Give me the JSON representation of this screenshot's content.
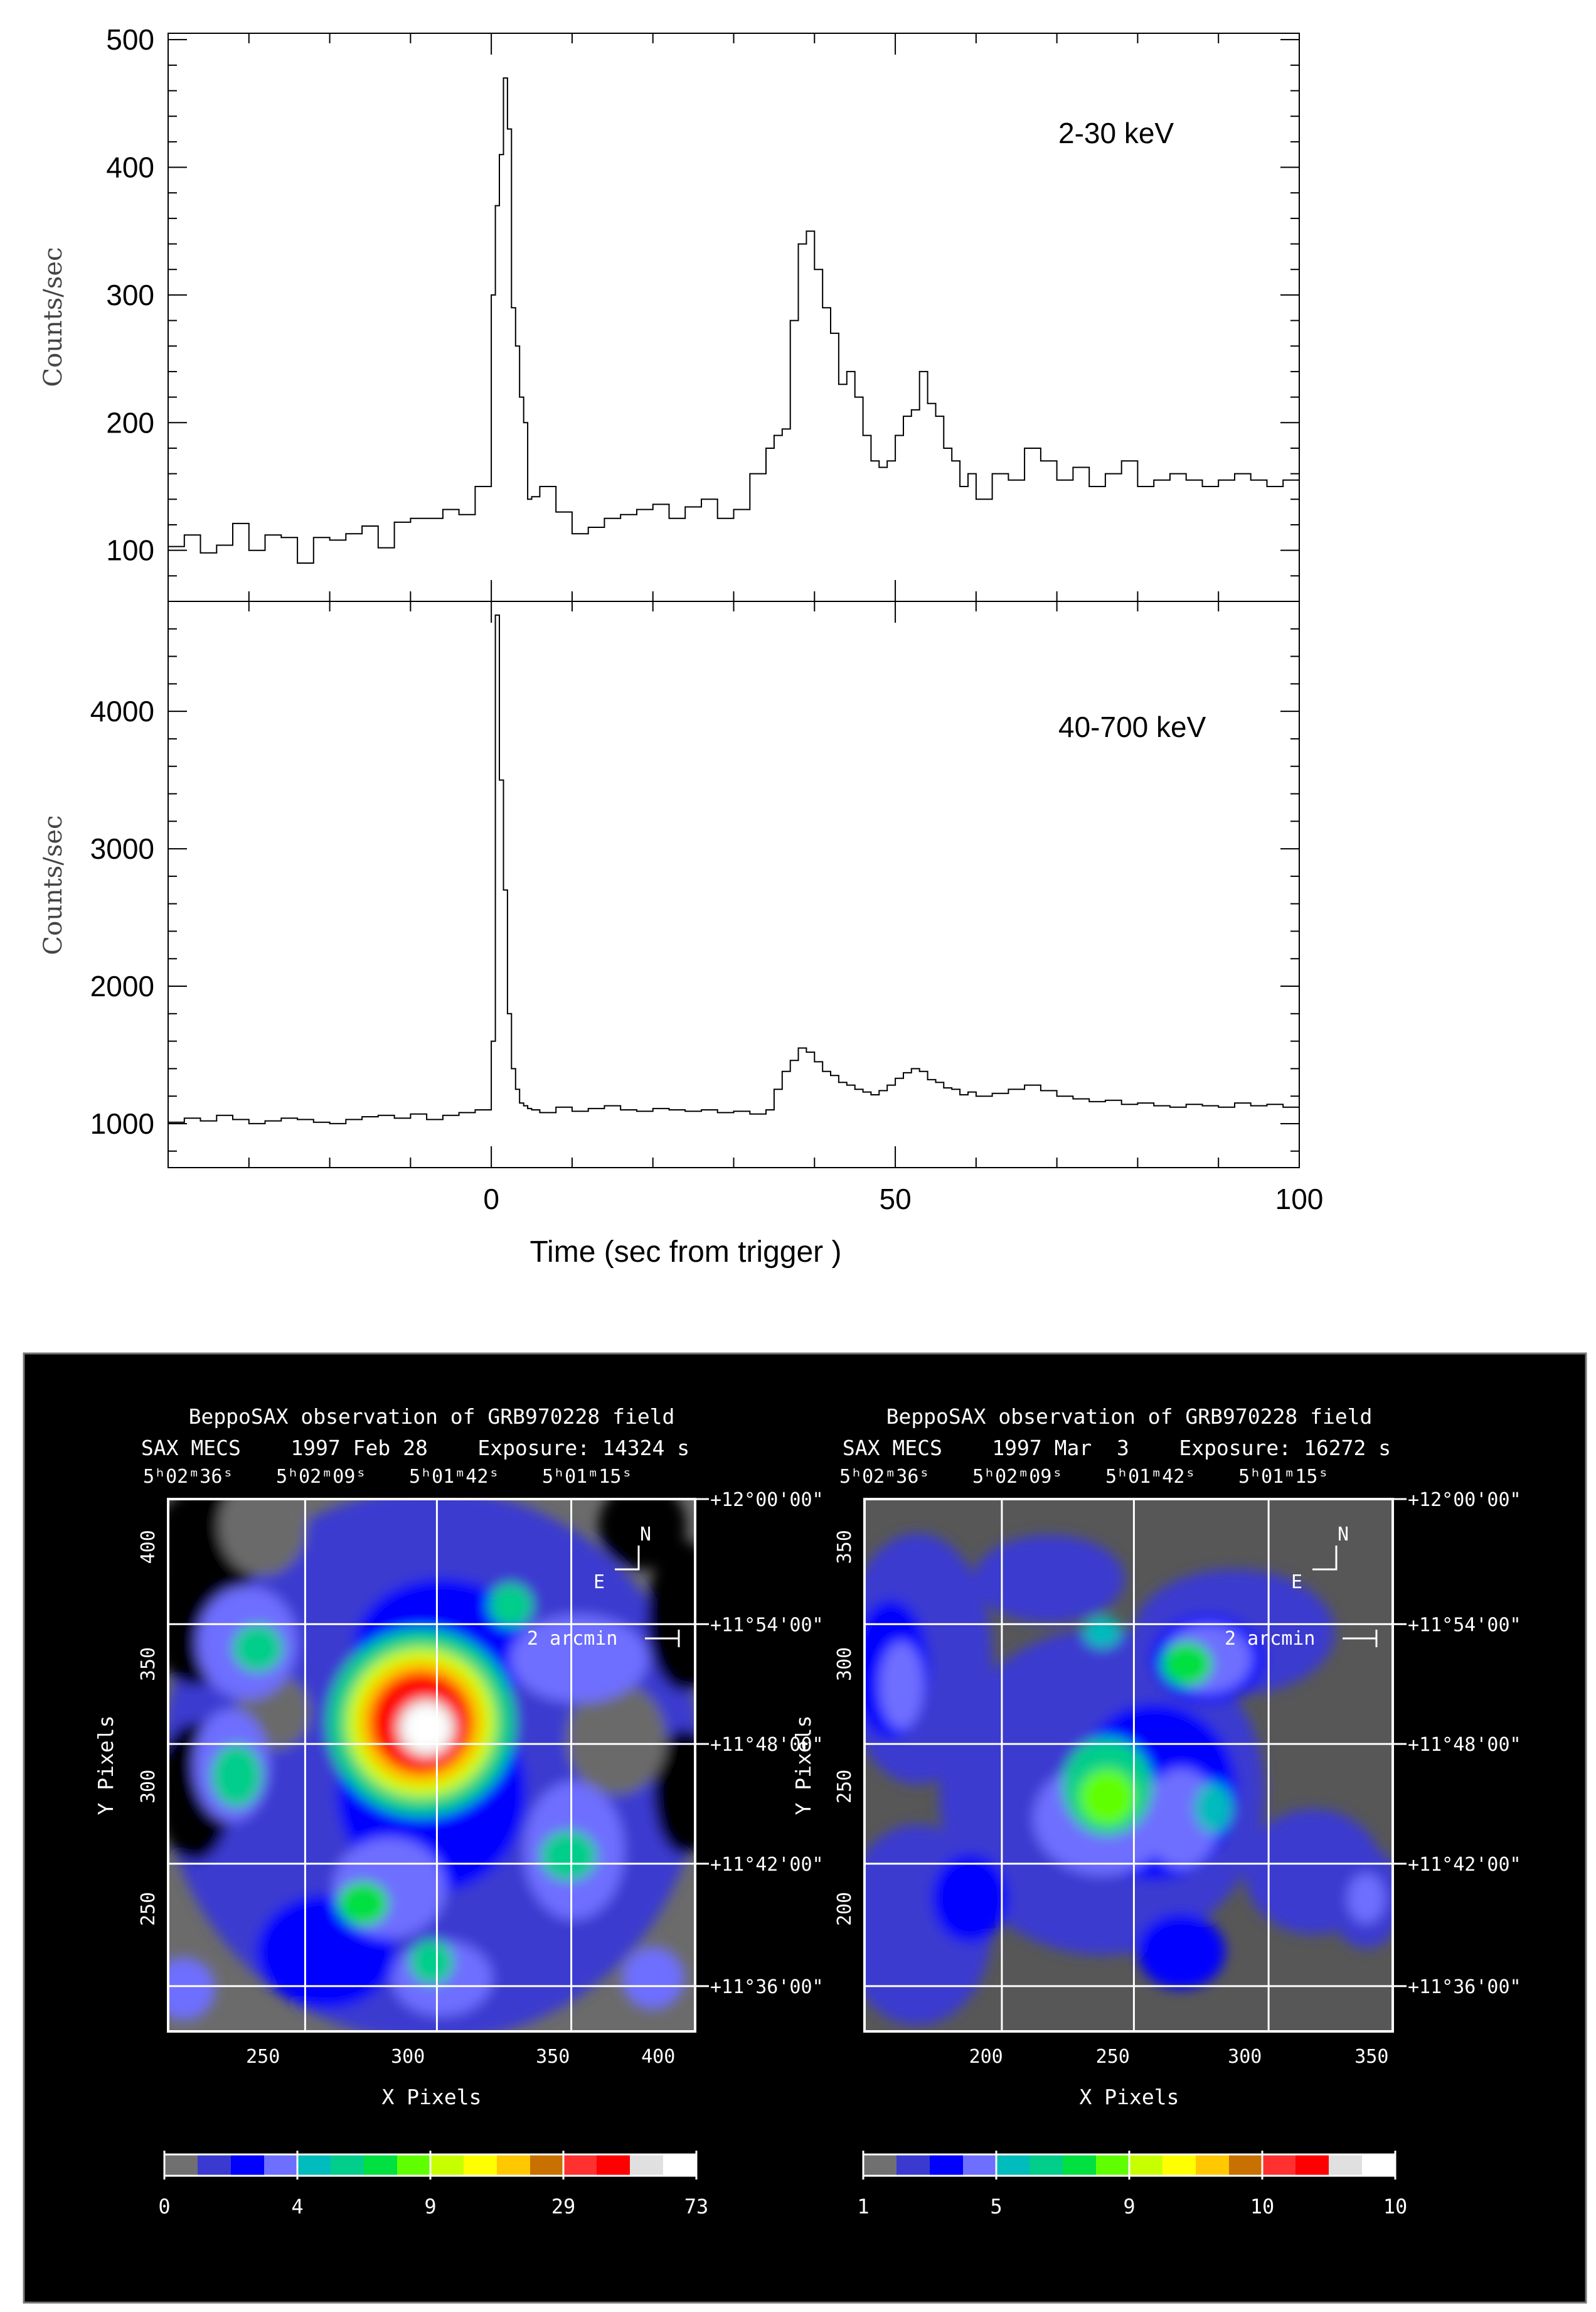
{
  "colors": {
    "line": "#000000",
    "panel_bg": "#000000",
    "grid": "#ffffff",
    "colorbar": [
      "#707070",
      "#3a3ad0",
      "#0000ff",
      "#6e6eff",
      "#00bcbc",
      "#00ce8a",
      "#00e040",
      "#60ff00",
      "#c8ff00",
      "#ffff00",
      "#ffc800",
      "#c87000",
      "#ff3030",
      "#ff0000",
      "#e0e0e0",
      "#ffffff"
    ]
  },
  "chart_data": [
    {
      "type": "line",
      "panel": "top",
      "title": "",
      "annotation": "2-30 keV",
      "xlabel": "",
      "ylabel": "Counts/sec",
      "xlim": [
        -40,
        100
      ],
      "ylim": [
        60,
        505
      ],
      "yticks": [
        "100",
        "200",
        "300",
        "400",
        "500"
      ],
      "x": [
        -40,
        -38,
        -36,
        -34,
        -32,
        -30,
        -28,
        -26,
        -24,
        -22,
        -20,
        -18,
        -16,
        -14,
        -12,
        -10,
        -8,
        -6,
        -4,
        -2,
        0,
        0.5,
        1,
        1.5,
        2,
        2.5,
        3,
        3.5,
        4,
        4.5,
        5,
        6,
        8,
        10,
        12,
        14,
        16,
        18,
        20,
        22,
        24,
        26,
        28,
        30,
        32,
        34,
        35,
        36,
        37,
        38,
        39,
        40,
        41,
        42,
        43,
        44,
        45,
        46,
        47,
        48,
        49,
        50,
        51,
        52,
        53,
        54,
        55,
        56,
        57,
        58,
        59,
        60,
        62,
        64,
        66,
        68,
        70,
        72,
        74,
        76,
        78,
        80,
        82,
        84,
        86,
        88,
        90,
        92,
        94,
        96,
        98,
        100
      ],
      "values": [
        103,
        112,
        98,
        104,
        121,
        100,
        112,
        110,
        90,
        110,
        108,
        113,
        119,
        102,
        122,
        125,
        125,
        132,
        128,
        150,
        300,
        370,
        410,
        470,
        430,
        290,
        260,
        220,
        200,
        140,
        142,
        150,
        130,
        113,
        118,
        125,
        128,
        132,
        136,
        125,
        134,
        140,
        125,
        132,
        160,
        180,
        190,
        195,
        280,
        340,
        350,
        320,
        290,
        270,
        230,
        240,
        220,
        190,
        170,
        165,
        170,
        190,
        205,
        210,
        240,
        215,
        205,
        180,
        170,
        150,
        160,
        140,
        160,
        155,
        180,
        170,
        155,
        165,
        150,
        160,
        170,
        150,
        155,
        160,
        155,
        150,
        155,
        160,
        155,
        150,
        155,
        160
      ]
    },
    {
      "type": "line",
      "panel": "bottom",
      "title": "",
      "annotation": "40-700 keV",
      "xlabel": "Time (sec from trigger )",
      "ylabel": "Counts/sec",
      "xlim": [
        -40,
        100
      ],
      "ylim": [
        680,
        4800
      ],
      "xticks": [
        "0",
        "50",
        "100"
      ],
      "yticks": [
        "1000",
        "2000",
        "3000",
        "4000"
      ],
      "x": [
        -40,
        -38,
        -36,
        -34,
        -32,
        -30,
        -28,
        -26,
        -24,
        -22,
        -20,
        -18,
        -16,
        -14,
        -12,
        -10,
        -8,
        -6,
        -4,
        -2,
        0,
        0.5,
        1,
        1.5,
        2,
        2.5,
        3,
        3.5,
        4,
        4.5,
        5,
        6,
        8,
        10,
        12,
        14,
        16,
        18,
        20,
        22,
        24,
        26,
        28,
        30,
        32,
        34,
        35,
        36,
        37,
        38,
        39,
        40,
        41,
        42,
        43,
        44,
        45,
        46,
        47,
        48,
        49,
        50,
        51,
        52,
        53,
        54,
        55,
        56,
        57,
        58,
        59,
        60,
        62,
        64,
        66,
        68,
        70,
        72,
        74,
        76,
        78,
        80,
        82,
        84,
        86,
        88,
        90,
        92,
        94,
        96,
        98,
        100
      ],
      "values": [
        1010,
        1040,
        1020,
        1060,
        1030,
        1000,
        1020,
        1040,
        1030,
        1010,
        1000,
        1030,
        1050,
        1060,
        1040,
        1070,
        1030,
        1060,
        1080,
        1100,
        1600,
        4700,
        3500,
        2700,
        1800,
        1400,
        1250,
        1150,
        1130,
        1110,
        1100,
        1080,
        1120,
        1090,
        1110,
        1130,
        1100,
        1090,
        1110,
        1100,
        1090,
        1100,
        1080,
        1090,
        1070,
        1100,
        1250,
        1380,
        1460,
        1550,
        1520,
        1450,
        1380,
        1350,
        1300,
        1280,
        1250,
        1230,
        1210,
        1240,
        1280,
        1330,
        1370,
        1400,
        1380,
        1320,
        1300,
        1260,
        1250,
        1210,
        1230,
        1200,
        1220,
        1250,
        1280,
        1240,
        1200,
        1180,
        1160,
        1170,
        1140,
        1150,
        1130,
        1120,
        1140,
        1130,
        1120,
        1150,
        1130,
        1140,
        1120,
        1150
      ]
    }
  ],
  "images": [
    {
      "title": "BeppoSAX observation of GRB970228 field",
      "subtitle": "SAX MECS    1997 Feb 28    Exposure: 14324 s",
      "ra_labels": [
        "5ʰ02ᵐ36ˢ",
        "5ʰ02ᵐ09ˢ",
        "5ʰ01ᵐ42ˢ",
        "5ʰ01ᵐ15ˢ"
      ],
      "dec_labels": [
        "+12°00'00\"",
        "+11°54'00\"",
        "+11°48'00\"",
        "+11°42'00\"",
        "+11°36'00\""
      ],
      "x_ticks": [
        "250",
        "300",
        "350",
        "400"
      ],
      "y_ticks": [
        "400",
        "350",
        "300",
        "250"
      ],
      "x_axis_label": "X Pixels",
      "y_axis_label": "Y Pixels",
      "compass_n": "N",
      "compass_e": "E",
      "scale_label": "2 arcmin",
      "colorbar_ticks": [
        "0",
        "4",
        "9",
        "29",
        "73"
      ]
    },
    {
      "title": "BeppoSAX observation of GRB970228 field",
      "subtitle": "SAX MECS    1997 Mar  3    Exposure: 16272 s",
      "ra_labels": [
        "5ʰ02ᵐ36ˢ",
        "5ʰ02ᵐ09ˢ",
        "5ʰ01ᵐ42ˢ",
        "5ʰ01ᵐ15ˢ"
      ],
      "dec_labels": [
        "+12°00'00\"",
        "+11°54'00\"",
        "+11°48'00\"",
        "+11°42'00\"",
        "+11°36'00\""
      ],
      "x_ticks": [
        "200",
        "250",
        "300",
        "350"
      ],
      "y_ticks": [
        "350",
        "300",
        "250",
        "200"
      ],
      "x_axis_label": "X Pixels",
      "y_axis_label": "Y Pixels",
      "compass_n": "N",
      "compass_e": "E",
      "scale_label": "2 arcmin",
      "colorbar_ticks": [
        "1",
        "5",
        "9",
        "10",
        "10"
      ]
    }
  ]
}
